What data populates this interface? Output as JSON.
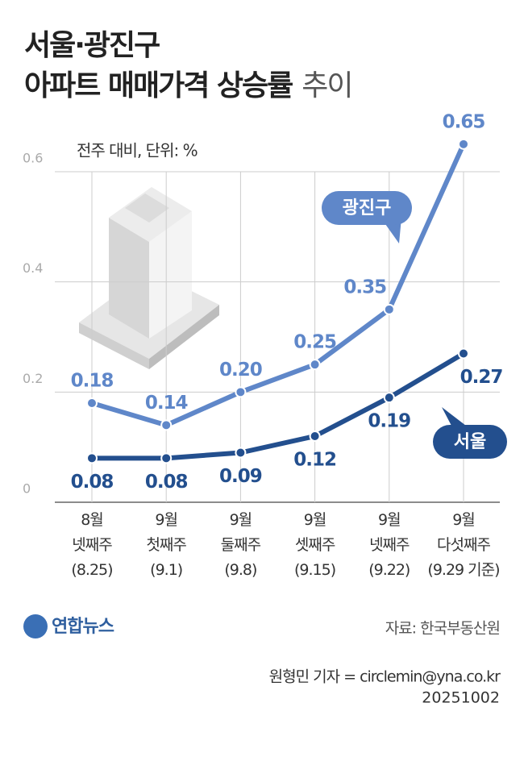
{
  "chart_data": {
    "type": "line",
    "title_lines": [
      "서울·광진구",
      "아파트 매매가격 상승률"
    ],
    "title_light": "추이",
    "subtitle": "전주 대비, 단위: %",
    "categories": [
      "8월\n넷째주\n(8.25)",
      "9월\n첫째주\n(9.1)",
      "9월\n둘째주\n(9.8)",
      "9월\n셋째주\n(9.15)",
      "9월\n넷째주\n(9.22)",
      "9월\n다섯째주\n(9.29 기준)"
    ],
    "series": [
      {
        "name": "광진구",
        "color": "#5f87c9",
        "values": [
          0.18,
          0.14,
          0.2,
          0.25,
          0.35,
          0.65
        ],
        "value_labels": [
          "0.18",
          "0.14",
          "0.20",
          "0.25",
          "0.35",
          "0.65"
        ]
      },
      {
        "name": "서울",
        "color": "#234f8e",
        "values": [
          0.08,
          0.08,
          0.09,
          0.12,
          0.19,
          0.27
        ],
        "value_labels": [
          "0.08",
          "0.08",
          "0.09",
          "0.12",
          "0.19",
          "0.27"
        ]
      }
    ],
    "ylim": [
      0,
      0.6
    ],
    "yticks": [
      0,
      0.2,
      0.4,
      0.6
    ],
    "grid": true,
    "logo": "연합뉴스",
    "source": "자료: 한국부동산원",
    "credit": "원형민 기자 = circlemin@yna.co.kr",
    "date": "20251002"
  }
}
